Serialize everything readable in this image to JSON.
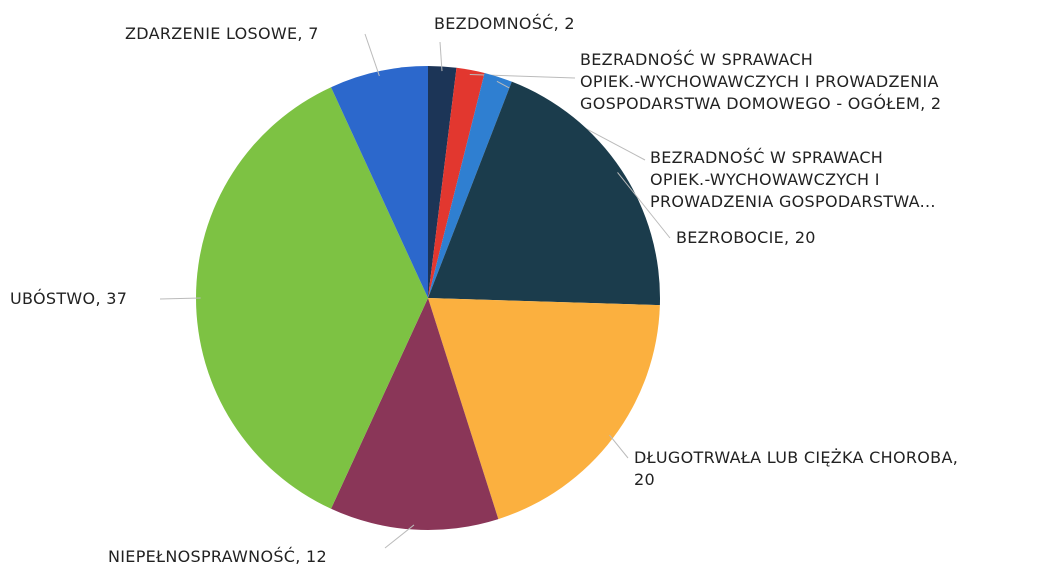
{
  "chart_data": {
    "type": "pie",
    "labels": [
      [
        "BEZDOMNOŚĆ, 2"
      ],
      [
        "BEZRADNOŚĆ W SPRAWACH",
        "OPIEK.-WYCHOWAWCZYCH I PROWADZENIA",
        "GOSPODARSTWA DOMOWEGO - OGÓŁEM, 2"
      ],
      [
        "BEZRADNOŚĆ W SPRAWACH",
        "OPIEK.-WYCHOWAWCZYCH I",
        "PROWADZENIA GOSPODARSTWA..."
      ],
      [
        "BEZROBOCIE, 20"
      ],
      [
        "DŁUGOTRWAŁA LUB CIĘŻKA CHOROBA,",
        "20"
      ],
      [
        "NIEPEŁNOSPRAWNOŚĆ, 12"
      ],
      [
        "UBÓSTWO, 37"
      ],
      [
        "ZDARZENIE LOSOWE, 7"
      ]
    ],
    "values": [
      2,
      2,
      2,
      20,
      20,
      12,
      37,
      7
    ],
    "colors": [
      "#1c3557",
      "#e2372f",
      "#2f7fd1",
      "#1b3c4c",
      "#fbb03f",
      "#8a3658",
      "#7dc243",
      "#2c68cc"
    ]
  }
}
